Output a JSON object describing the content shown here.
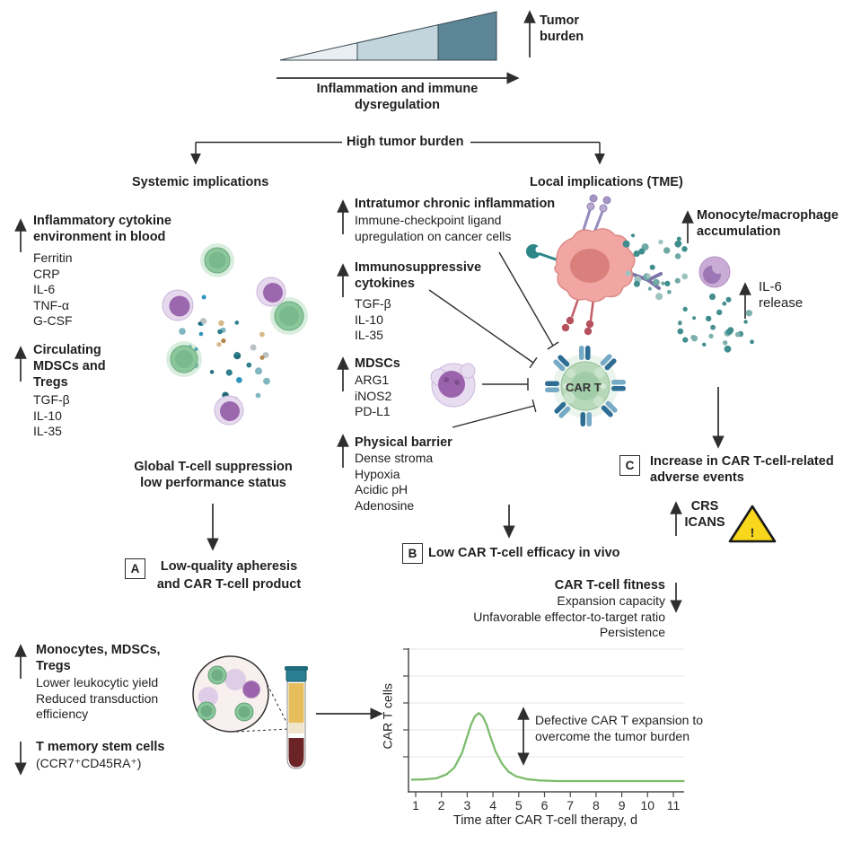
{
  "figure": {
    "bg": "#ffffff",
    "text_color": "#1f1f1f",
    "line_color": "#2e2e2e"
  },
  "top_gradient": {
    "label": "Tumor burden",
    "axis_label": "Inflammation and immune dysregulation",
    "segment_colors": [
      "#e8eef2",
      "#c3d5dc",
      "#5c8595"
    ]
  },
  "branch": {
    "root": "High tumor burden",
    "left": "Systemic implications",
    "right": "Local implications (TME)"
  },
  "systemic": {
    "inflammatory_title": "Inflammatory cytokine environment in blood",
    "inflammatory_items": [
      "Ferritin",
      "CRP",
      "IL-6",
      "TNF-α",
      "G-CSF"
    ],
    "circulating_title": "Circulating MDSCs and Tregs",
    "circulating_items": [
      "TGF-β",
      "IL-10",
      "IL-35"
    ],
    "suppression_line1": "Global T-cell suppression",
    "suppression_line2": "low performance status"
  },
  "local": {
    "intratumor_title": "Intratumor chronic inflammation",
    "intratumor_sub": "Immune-checkpoint ligand upregulation on cancer cells",
    "immunosuppressive_title": "Immunosuppressive cytokines",
    "immunosuppressive_items": [
      "TGF-β",
      "IL-10",
      "IL-35"
    ],
    "mdscs_title": "MDSCs",
    "mdscs_items": [
      "ARG1",
      "iNOS2",
      "PD-L1"
    ],
    "physical_title": "Physical barrier",
    "physical_items": [
      "Dense stroma",
      "Hypoxia",
      "Acidic pH",
      "Adenosine"
    ],
    "car_t_label": "CAR T"
  },
  "tme_right": {
    "monocyte_title": "Monocyte/macrophage accumulation",
    "il6_line1": "IL-6",
    "il6_line2": "release"
  },
  "outcomes": {
    "a_letter": "A",
    "a_text": "Low-quality apheresis and CAR T-cell product",
    "b_letter": "B",
    "b_text": "Low CAR T-cell efficacy in vivo",
    "c_letter": "C",
    "c_text": "Increase in CAR T-cell-related adverse events",
    "adverse_items": [
      "CRS",
      "ICANS"
    ]
  },
  "fitness": {
    "title": "CAR T-cell fitness",
    "items": [
      "Expansion capacity",
      "Unfavorable effector-to-target ratio",
      "Persistence"
    ]
  },
  "apheresis": {
    "monocytes_title": "Monocytes, MDSCs, Tregs",
    "monocytes_items": [
      "Lower leukocytic yield",
      "Reduced transduction efficiency"
    ],
    "tmsc_title": "T memory stem cells",
    "tmsc_sub": "(CCR7⁺CD45RA⁺)"
  },
  "chart_data": {
    "type": "line",
    "title": "",
    "xlabel": "Time after CAR T-cell therapy, d",
    "ylabel": "CAR T cells",
    "x_ticks": [
      1,
      2,
      3,
      4,
      5,
      6,
      7,
      8,
      9,
      10,
      11
    ],
    "xlim": [
      0.85,
      11.4
    ],
    "ylim": [
      0,
      1
    ],
    "grid": true,
    "legend": false,
    "line_color": "#7cbd6d",
    "series": [
      {
        "name": "CAR T cells",
        "x": [
          0.85,
          1.3,
          1.8,
          2.2,
          2.5,
          2.8,
          3.0,
          3.15,
          3.3,
          3.45,
          3.6,
          3.75,
          3.9,
          4.1,
          4.35,
          4.6,
          4.9,
          5.3,
          5.8,
          6.5,
          7.5,
          8.5,
          9.5,
          10.5,
          11.4
        ],
        "y": [
          0.03,
          0.032,
          0.04,
          0.07,
          0.12,
          0.23,
          0.35,
          0.44,
          0.5,
          0.525,
          0.5,
          0.44,
          0.35,
          0.24,
          0.15,
          0.09,
          0.055,
          0.035,
          0.025,
          0.02,
          0.02,
          0.02,
          0.02,
          0.02,
          0.02
        ]
      }
    ],
    "annotation_lines": [
      "Defective CAR T expansion to",
      "overcome the tumor burden"
    ]
  }
}
